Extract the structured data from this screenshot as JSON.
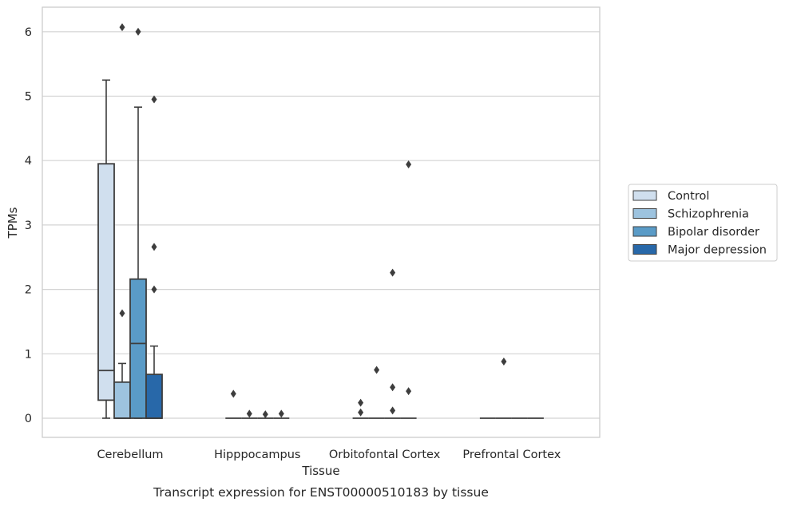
{
  "chart_data": {
    "type": "box",
    "caption": "Transcript expression for ENST00000510183 by tissue",
    "xlabel": "Tissue",
    "ylabel": "TPMs",
    "ylim": [
      -0.3,
      6.4
    ],
    "yticks": [
      0,
      1,
      2,
      3,
      4,
      5,
      6
    ],
    "grid": "horizontal",
    "legend_position": "right",
    "categories": [
      "Cerebellum",
      "Hipppocampus",
      "Orbitofontal Cortex",
      "Prefrontal Cortex"
    ],
    "series": [
      {
        "name": "Control",
        "color": "#d0dfee",
        "boxes": [
          {
            "q1": 0.28,
            "median": 0.74,
            "q3": 3.95,
            "whislo": 0.0,
            "whishi": 5.25,
            "outliers": []
          },
          {
            "q1": 0.0,
            "median": 0.0,
            "q3": 0.0,
            "whislo": 0.0,
            "whishi": 0.0,
            "outliers": [
              0.38
            ]
          },
          {
            "q1": 0.0,
            "median": 0.0,
            "q3": 0.0,
            "whislo": 0.0,
            "whishi": 0.0,
            "outliers": [
              0.24,
              0.09
            ]
          },
          {
            "q1": 0.0,
            "median": 0.0,
            "q3": 0.0,
            "whislo": 0.0,
            "whishi": 0.0,
            "outliers": []
          }
        ]
      },
      {
        "name": "Schizophrenia",
        "color": "#9dc3df",
        "boxes": [
          {
            "q1": 0.0,
            "median": 0.0,
            "q3": 0.56,
            "whislo": 0.0,
            "whishi": 0.85,
            "outliers": [
              1.63,
              6.07
            ]
          },
          {
            "q1": 0.0,
            "median": 0.0,
            "q3": 0.0,
            "whislo": 0.0,
            "whishi": 0.0,
            "outliers": [
              0.07
            ]
          },
          {
            "q1": 0.0,
            "median": 0.0,
            "q3": 0.0,
            "whislo": 0.0,
            "whishi": 0.0,
            "outliers": [
              0.75
            ]
          },
          {
            "q1": 0.0,
            "median": 0.0,
            "q3": 0.0,
            "whislo": 0.0,
            "whishi": 0.0,
            "outliers": [
              0.88
            ]
          }
        ]
      },
      {
        "name": "Bipolar disorder",
        "color": "#5a9bc7",
        "boxes": [
          {
            "q1": 0.0,
            "median": 1.16,
            "q3": 2.16,
            "whislo": 0.0,
            "whishi": 4.83,
            "outliers": [
              6.0
            ]
          },
          {
            "q1": 0.0,
            "median": 0.0,
            "q3": 0.0,
            "whislo": 0.0,
            "whishi": 0.0,
            "outliers": [
              0.06
            ]
          },
          {
            "q1": 0.0,
            "median": 0.0,
            "q3": 0.0,
            "whislo": 0.0,
            "whishi": 0.0,
            "outliers": [
              2.26,
              0.48,
              0.12
            ]
          },
          {
            "q1": 0.0,
            "median": 0.0,
            "q3": 0.0,
            "whislo": 0.0,
            "whishi": 0.0,
            "outliers": []
          }
        ]
      },
      {
        "name": "Major depression",
        "color": "#2868a9",
        "boxes": [
          {
            "q1": 0.0,
            "median": 0.0,
            "q3": 0.68,
            "whislo": 0.0,
            "whishi": 1.12,
            "outliers": [
              4.95,
              2.66,
              2.0
            ]
          },
          {
            "q1": 0.0,
            "median": 0.0,
            "q3": 0.0,
            "whislo": 0.0,
            "whishi": 0.0,
            "outliers": [
              0.07
            ]
          },
          {
            "q1": 0.0,
            "median": 0.0,
            "q3": 0.0,
            "whislo": 0.0,
            "whishi": 0.0,
            "outliers": [
              3.94,
              0.42
            ]
          },
          {
            "q1": 0.0,
            "median": 0.0,
            "q3": 0.0,
            "whislo": 0.0,
            "whishi": 0.0,
            "outliers": []
          }
        ]
      }
    ]
  }
}
